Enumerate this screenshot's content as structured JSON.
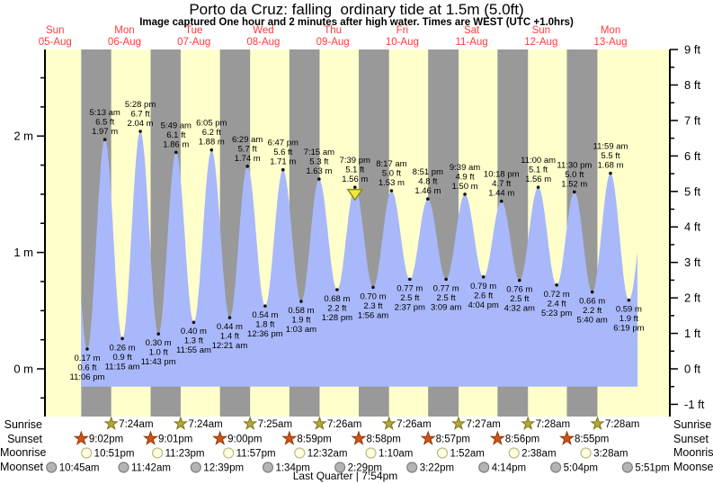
{
  "title": "Porto da Cruz: falling  ordinary tide at 1.5m (5.0ft)",
  "subtitle": "Image captured One hour and 2 minutes after high water. Times are WEST (UTC +1.0hrs)",
  "chart_data": {
    "type": "area",
    "x_axis": {
      "days": [
        {
          "weekday": "Sun",
          "date": "05-Aug",
          "day": 5
        },
        {
          "weekday": "Mon",
          "date": "06-Aug",
          "day": 6
        },
        {
          "weekday": "Tue",
          "date": "07-Aug",
          "day": 7
        },
        {
          "weekday": "Wed",
          "date": "08-Aug",
          "day": 8
        },
        {
          "weekday": "Thu",
          "date": "09-Aug",
          "day": 9
        },
        {
          "weekday": "Fri",
          "date": "10-Aug",
          "day": 10
        },
        {
          "weekday": "Sat",
          "date": "11-Aug",
          "day": 11
        },
        {
          "weekday": "Sun",
          "date": "12-Aug",
          "day": 12
        },
        {
          "weekday": "Mon",
          "date": "13-Aug",
          "day": 13
        }
      ]
    },
    "y_axis_left": {
      "unit": "m",
      "ticks": [
        {
          "label": "0 m",
          "m": 0
        },
        {
          "label": "1 m",
          "m": 1
        },
        {
          "label": "2 m",
          "m": 2
        }
      ],
      "minor_step_m": 0.25
    },
    "y_axis_right": {
      "unit": "ft",
      "ticks": [
        {
          "label": "9 ft",
          "ft": 9
        },
        {
          "label": "8 ft",
          "ft": 8
        },
        {
          "label": "7 ft",
          "ft": 7
        },
        {
          "label": "6 ft",
          "ft": 6
        },
        {
          "label": "5 ft",
          "ft": 5
        },
        {
          "label": "4 ft",
          "ft": 4
        },
        {
          "label": "3 ft",
          "ft": 3
        },
        {
          "label": "2 ft",
          "ft": 2
        },
        {
          "label": "1 ft",
          "ft": 1
        },
        {
          "label": "0 ft",
          "ft": 0
        },
        {
          "label": "-1 ft",
          "ft": -1
        }
      ],
      "minor_step_ft": 0.5
    },
    "tide_events": [
      {
        "day": 5,
        "time": "11:06 pm",
        "type": "low",
        "height_m": 0.17,
        "height_ft": 0.6
      },
      {
        "day": 6,
        "time": "5:13 am",
        "type": "high",
        "height_m": 1.97,
        "height_ft": 6.5
      },
      {
        "day": 6,
        "time": "11:15 am",
        "type": "low",
        "height_m": 0.26,
        "height_ft": 0.9
      },
      {
        "day": 6,
        "time": "5:28 pm",
        "type": "high",
        "height_m": 2.04,
        "height_ft": 6.7
      },
      {
        "day": 6,
        "time": "11:43 pm",
        "type": "low",
        "height_m": 0.3,
        "height_ft": 1.0
      },
      {
        "day": 7,
        "time": "5:49 am",
        "type": "high",
        "height_m": 1.86,
        "height_ft": 6.1
      },
      {
        "day": 7,
        "time": "11:55 am",
        "type": "low",
        "height_m": 0.4,
        "height_ft": 1.3
      },
      {
        "day": 7,
        "time": "6:05 pm",
        "type": "high",
        "height_m": 1.88,
        "height_ft": 6.2
      },
      {
        "day": 8,
        "time": "12:21 am",
        "type": "low",
        "height_m": 0.44,
        "height_ft": 1.4
      },
      {
        "day": 8,
        "time": "6:29 am",
        "type": "high",
        "height_m": 1.74,
        "height_ft": 5.7
      },
      {
        "day": 8,
        "time": "12:36 pm",
        "type": "low",
        "height_m": 0.54,
        "height_ft": 1.8
      },
      {
        "day": 8,
        "time": "6:47 pm",
        "type": "high",
        "height_m": 1.71,
        "height_ft": 5.6
      },
      {
        "day": 9,
        "time": "1:03 am",
        "type": "low",
        "height_m": 0.58,
        "height_ft": 1.9
      },
      {
        "day": 9,
        "time": "7:15 am",
        "type": "high",
        "height_m": 1.63,
        "height_ft": 5.3
      },
      {
        "day": 9,
        "time": "1:28 pm",
        "type": "low",
        "height_m": 0.68,
        "height_ft": 2.2
      },
      {
        "day": 9,
        "time": "7:39 pm",
        "type": "high",
        "height_m": 1.56,
        "height_ft": 5.1,
        "current": true
      },
      {
        "day": 10,
        "time": "1:56 am",
        "type": "low",
        "height_m": 0.7,
        "height_ft": 2.3
      },
      {
        "day": 10,
        "time": "8:17 am",
        "type": "high",
        "height_m": 1.53,
        "height_ft": 5.0
      },
      {
        "day": 10,
        "time": "2:37 pm",
        "type": "low",
        "height_m": 0.77,
        "height_ft": 2.5
      },
      {
        "day": 10,
        "time": "8:51 pm",
        "type": "high",
        "height_m": 1.46,
        "height_ft": 4.8
      },
      {
        "day": 11,
        "time": "3:09 am",
        "type": "low",
        "height_m": 0.77,
        "height_ft": 2.5
      },
      {
        "day": 11,
        "time": "9:39 am",
        "type": "high",
        "height_m": 1.5,
        "height_ft": 4.9
      },
      {
        "day": 11,
        "time": "4:04 pm",
        "type": "low",
        "height_m": 0.79,
        "height_ft": 2.6
      },
      {
        "day": 11,
        "time": "10:18 pm",
        "type": "high",
        "height_m": 1.44,
        "height_ft": 4.7
      },
      {
        "day": 12,
        "time": "4:32 am",
        "type": "low",
        "height_m": 0.76,
        "height_ft": 2.5
      },
      {
        "day": 12,
        "time": "11:00 am",
        "type": "high",
        "height_m": 1.56,
        "height_ft": 5.1
      },
      {
        "day": 12,
        "time": "5:23 pm",
        "type": "low",
        "height_m": 0.72,
        "height_ft": 2.4
      },
      {
        "day": 12,
        "time": "11:30 pm",
        "type": "high",
        "height_m": 1.52,
        "height_ft": 5.0
      },
      {
        "day": 13,
        "time": "5:40 am",
        "type": "low",
        "height_m": 0.66,
        "height_ft": 2.2
      },
      {
        "day": 13,
        "time": "11:59 am",
        "type": "high",
        "height_m": 1.68,
        "height_ft": 5.5
      },
      {
        "day": 13,
        "time": "6:19 pm",
        "type": "low",
        "height_m": 0.59,
        "height_ft": 1.9
      }
    ],
    "current_position_marker": {
      "day": 9,
      "time": "7:39 pm",
      "note": "yellow triangle below high-water point"
    },
    "colors": {
      "day_band": "#ffffcc",
      "night_band": "#999999",
      "tide_fill": "#a9b8fa",
      "day_label": "#ff3b3b",
      "marker_fill": "#f2e83a",
      "marker_stroke": "#8b8b1a",
      "axis": "#000000",
      "sunrise_star_fill": "#b3a832",
      "sunrise_star_stroke": "#7d7619",
      "sunset_star_fill": "#cf5319",
      "sunset_star_stroke": "#8c3a08",
      "moonrise_fill": "#ffffdd",
      "moonrise_stroke": "#b9b98e",
      "moonset_fill": "#b4b4b4",
      "moonset_stroke": "#808080"
    }
  },
  "astro": {
    "rows": [
      {
        "label": "Sunrise",
        "icon": "sunrise-star",
        "events": [
          {
            "day": 6,
            "time": "7:24am"
          },
          {
            "day": 7,
            "time": "7:24am"
          },
          {
            "day": 8,
            "time": "7:25am"
          },
          {
            "day": 9,
            "time": "7:26am"
          },
          {
            "day": 10,
            "time": "7:26am"
          },
          {
            "day": 11,
            "time": "7:27am"
          },
          {
            "day": 12,
            "time": "7:28am"
          },
          {
            "day": 13,
            "time": "7:28am"
          }
        ]
      },
      {
        "label": "Sunset",
        "icon": "sunset-star",
        "events": [
          {
            "day": 5,
            "time": "9:02pm"
          },
          {
            "day": 6,
            "time": "9:01pm"
          },
          {
            "day": 7,
            "time": "9:00pm"
          },
          {
            "day": 8,
            "time": "8:59pm"
          },
          {
            "day": 9,
            "time": "8:58pm"
          },
          {
            "day": 10,
            "time": "8:57pm"
          },
          {
            "day": 11,
            "time": "8:56pm"
          },
          {
            "day": 12,
            "time": "8:55pm"
          }
        ]
      },
      {
        "label": "Moonrise",
        "icon": "moonrise-circle",
        "events": [
          {
            "day": 5,
            "time": "10:51pm"
          },
          {
            "day": 6,
            "time": "11:23pm"
          },
          {
            "day": 7,
            "time": "11:57pm"
          },
          {
            "day": 9,
            "time": "12:32am"
          },
          {
            "day": 10,
            "time": "1:10am"
          },
          {
            "day": 11,
            "time": "1:52am"
          },
          {
            "day": 12,
            "time": "2:38am"
          },
          {
            "day": 13,
            "time": "3:28am"
          }
        ]
      },
      {
        "label": "Moonset",
        "icon": "moonset-circle",
        "events": [
          {
            "day": 5,
            "time": "10:45am"
          },
          {
            "day": 6,
            "time": "11:42am"
          },
          {
            "day": 7,
            "time": "12:39pm"
          },
          {
            "day": 8,
            "time": "1:34pm"
          },
          {
            "day": 9,
            "time": "2:29pm"
          },
          {
            "day": 10,
            "time": "3:22pm"
          },
          {
            "day": 11,
            "time": "4:14pm"
          },
          {
            "day": 12,
            "time": "5:04pm"
          },
          {
            "day": 13,
            "time": "5:51pm"
          }
        ]
      }
    ],
    "moon_phase": "Last Quarter | 7:54pm"
  }
}
